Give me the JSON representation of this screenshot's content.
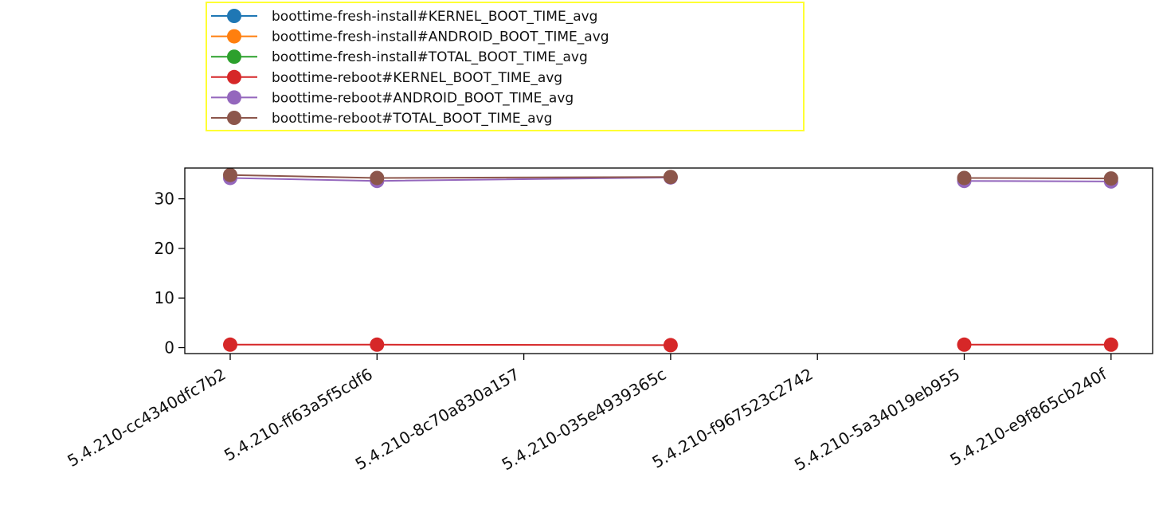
{
  "chart_data": {
    "type": "line",
    "title": "",
    "xlabel": "",
    "ylabel": "",
    "categories": [
      "5.4.210-cc4340dfc7b2",
      "5.4.210-ff63a5f5cdf6",
      "5.4.210-8c70a830a157",
      "5.4.210-035e4939365c",
      "5.4.210-f967523c2742",
      "5.4.210-5a34019eb955",
      "5.4.210-e9f865cb240f"
    ],
    "ylim": [
      -1.2,
      36.2
    ],
    "yticks": [
      0,
      10,
      20,
      30
    ],
    "grid": false,
    "legend_position": "top-left",
    "series": [
      {
        "name": "boottime-fresh-install#KERNEL_BOOT_TIME_avg",
        "color": "#1f77b4",
        "values": [
          null,
          null,
          null,
          null,
          null,
          null,
          null
        ]
      },
      {
        "name": "boottime-fresh-install#ANDROID_BOOT_TIME_avg",
        "color": "#ff7f0e",
        "values": [
          null,
          null,
          null,
          null,
          null,
          null,
          null
        ]
      },
      {
        "name": "boottime-fresh-install#TOTAL_BOOT_TIME_avg",
        "color": "#2ca02c",
        "values": [
          null,
          null,
          null,
          null,
          null,
          null,
          null
        ]
      },
      {
        "name": "boottime-reboot#KERNEL_BOOT_TIME_avg",
        "color": "#d62728",
        "values": [
          0.6,
          0.6,
          0.5,
          null,
          null,
          0.6,
          0.6
        ]
      },
      {
        "name": "boottime-reboot#ANDROID_BOOT_TIME_avg",
        "color": "#9467bd",
        "values": [
          34.2,
          33.6,
          34.3,
          null,
          null,
          33.6,
          33.5
        ]
      },
      {
        "name": "boottime-reboot#TOTAL_BOOT_TIME_avg",
        "color": "#8c564b",
        "values": [
          34.8,
          34.2,
          34.4,
          null,
          null,
          34.2,
          34.1
        ]
      }
    ],
    "series_x_index": [
      0,
      1,
      3,
      null,
      null,
      5,
      6
    ]
  }
}
